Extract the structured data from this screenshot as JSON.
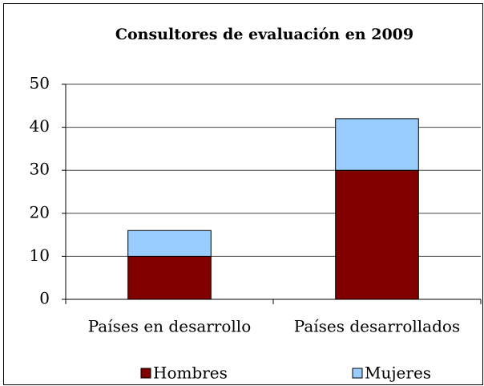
{
  "chart_data": {
    "type": "stacked-bar",
    "title": "Consultores de evaluación en 2009",
    "categories": [
      "Países en desarrollo",
      "Países desarrollados"
    ],
    "series": [
      {
        "name": "Hombres",
        "color": "#800000",
        "values": [
          10,
          30
        ]
      },
      {
        "name": "Mujeres",
        "color": "#99ccff",
        "values": [
          6,
          12
        ]
      }
    ],
    "ylim": [
      0,
      50
    ],
    "yticks": [
      0,
      10,
      20,
      30,
      40,
      50
    ],
    "grid": true,
    "legend": "bottom"
  }
}
